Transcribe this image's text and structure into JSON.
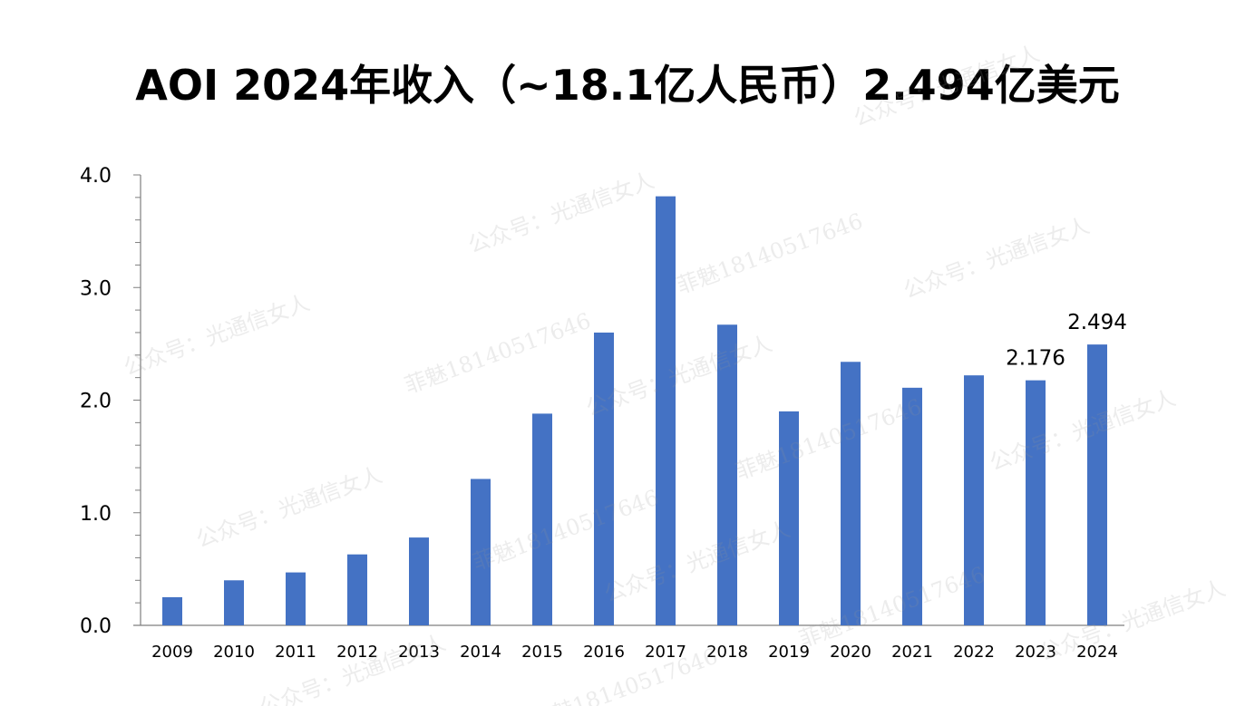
{
  "title": "AOI 2024年收入（~18.1亿人民币）2.494亿美元",
  "watermarks": {
    "account": "公众号：光通信女人",
    "contact": "菲魅18140517646"
  },
  "colors": {
    "bar": "#4472C4",
    "axis": "#7f7f7f",
    "text": "#000000"
  },
  "chart_data": {
    "type": "bar",
    "categories": [
      "2009",
      "2010",
      "2011",
      "2012",
      "2013",
      "2014",
      "2015",
      "2016",
      "2017",
      "2018",
      "2019",
      "2020",
      "2021",
      "2022",
      "2023",
      "2024"
    ],
    "values": [
      0.25,
      0.4,
      0.47,
      0.63,
      0.78,
      1.3,
      1.88,
      2.6,
      3.81,
      2.67,
      1.9,
      2.34,
      2.11,
      2.22,
      2.176,
      2.494
    ],
    "data_labels": [
      {
        "category": "2023",
        "text": "2.176"
      },
      {
        "category": "2024",
        "text": "2.494"
      }
    ],
    "yticks": [
      "0.0",
      "1.0",
      "2.0",
      "3.0",
      "4.0"
    ],
    "ylim": [
      0,
      4.0
    ],
    "xlabel": "",
    "ylabel": "",
    "grid": false
  }
}
